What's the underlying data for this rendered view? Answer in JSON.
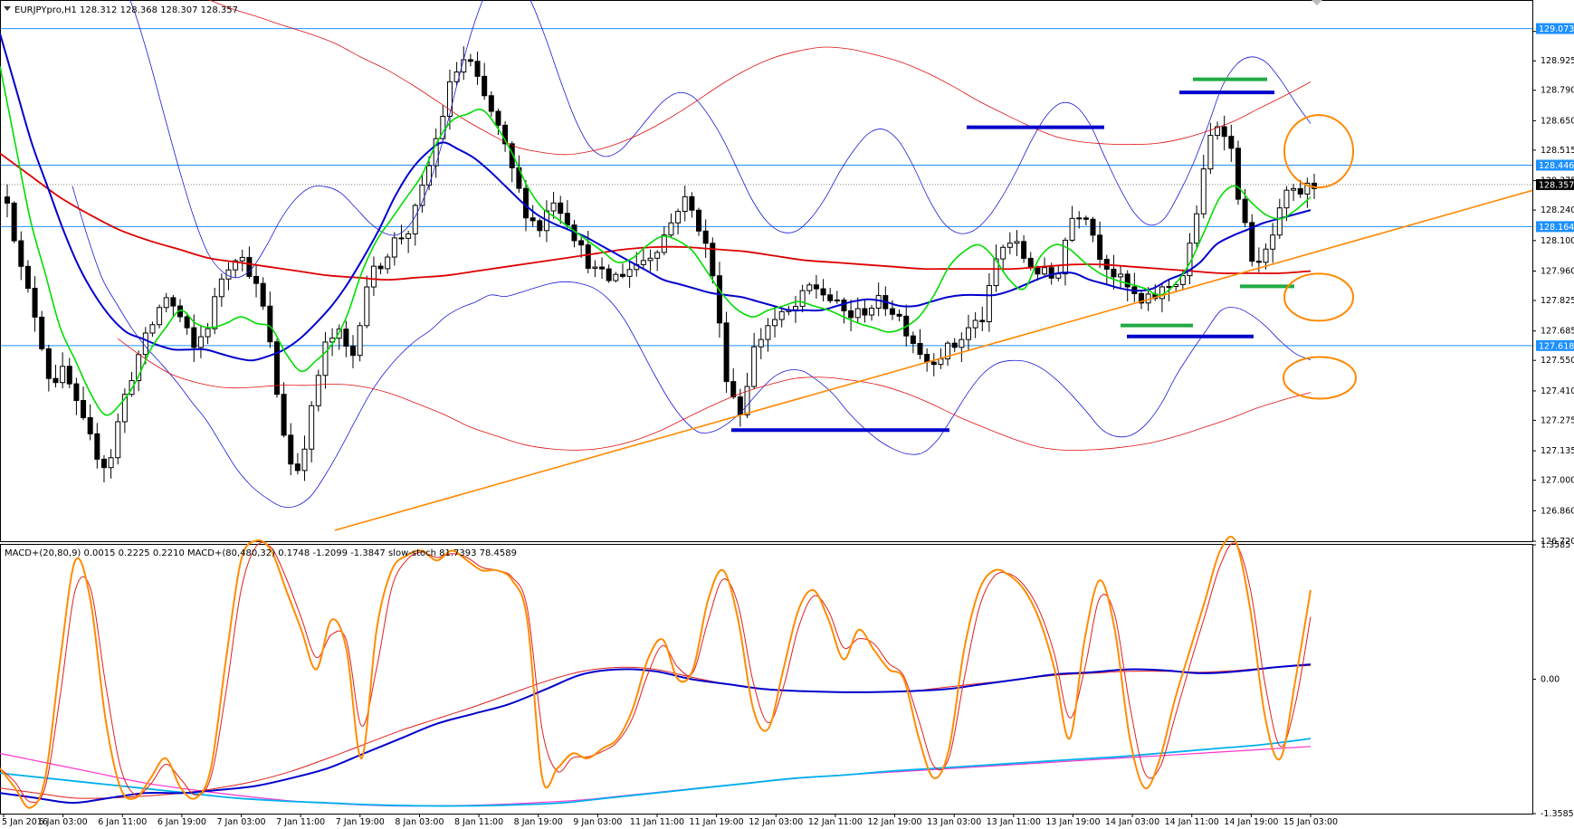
{
  "header": {
    "main_label": "EURJPYpro,H1  128.312 128.368 128.307 128.357",
    "indicator_label": "MACD+(20,80,9) 0.0015 0.2225 0.2210  MACD+(80,480,32) 0.1748 -1.2099 -1.3847  slow-stoch 81.7393 78.4589"
  },
  "colors": {
    "frame": "#000000",
    "ema_green": "#00dd00",
    "ema_blue": "#0000cc",
    "ema_red": "#dd0000",
    "band_blue": "#1a1ad8",
    "band_red": "#e01010",
    "trendline": "#ff8800",
    "hline": "#1e90ff",
    "stoch_orange": "#ff8c00",
    "stoch_red": "#e02020",
    "macd_cyan": "#00b0f0",
    "macd_pink": "#ff33cc",
    "tag_blue": "#1e90ff",
    "tag_black": "#000000"
  },
  "chart_data": [
    {
      "type": "candlestick",
      "symbol": "EURJPYpro",
      "timeframe": "H1",
      "ohlc_last": {
        "open": 128.312,
        "high": 128.368,
        "low": 128.307,
        "close": 128.357
      },
      "ylim": [
        126.72,
        129.2
      ],
      "y_ticks": [
        "129.060",
        "128.925",
        "128.790",
        "128.650",
        "128.515",
        "128.375",
        "128.240",
        "128.100",
        "127.960",
        "127.825",
        "127.685",
        "127.550",
        "127.410",
        "127.275",
        "127.135",
        "127.000",
        "126.860",
        "126.720"
      ],
      "x_tick_labels": [
        "5 Jan 2016",
        "6 Jan 03:00",
        "6 Jan 11:00",
        "6 Jan 19:00",
        "7 Jan 03:00",
        "7 Jan 11:00",
        "7 Jan 19:00",
        "8 Jan 03:00",
        "8 Jan 11:00",
        "8 Jan 19:00",
        "9 Jan 03:00",
        "11 Jan 11:00",
        "11 Jan 19:00",
        "12 Jan 03:00",
        "12 Jan 11:00",
        "12 Jan 19:00",
        "13 Jan 03:00",
        "13 Jan 11:00",
        "13 Jan 19:00",
        "14 Jan 03:00",
        "14 Jan 11:00",
        "14 Jan 19:00",
        "15 Jan 03:00"
      ],
      "horizontal_levels": [
        {
          "value": 129.073,
          "label": "129.073"
        },
        {
          "value": 128.446,
          "label": "128.446"
        },
        {
          "value": 128.164,
          "label": "128.164"
        },
        {
          "value": 127.618,
          "label": "127.618"
        }
      ],
      "current_price": {
        "value": 128.357,
        "label": "128.357"
      },
      "price_path": [
        128.3,
        127.95,
        127.75,
        127.45,
        127.5,
        127.3,
        127.15,
        127.05,
        127.35,
        127.55,
        127.7,
        127.85,
        127.75,
        127.6,
        127.72,
        127.95,
        128.05,
        127.95,
        127.75,
        127.3,
        127.0,
        127.25,
        127.6,
        127.68,
        127.55,
        127.9,
        128.0,
        128.1,
        128.15,
        128.35,
        128.6,
        128.85,
        128.95,
        128.78,
        128.65,
        128.45,
        128.25,
        128.15,
        128.3,
        128.2,
        128.05,
        127.95,
        127.92,
        127.96,
        128.0,
        128.05,
        128.15,
        128.3,
        128.2,
        128.0,
        127.5,
        127.3,
        127.6,
        127.72,
        127.75,
        127.8,
        127.9,
        127.85,
        127.78,
        127.75,
        127.8,
        127.82,
        127.76,
        127.65,
        127.55,
        127.58,
        127.62,
        127.7,
        127.75,
        128.05,
        128.1,
        128.0,
        127.95,
        127.92,
        128.2,
        128.25,
        128.05,
        127.95,
        127.88,
        127.8,
        127.85,
        127.9,
        127.95,
        128.3,
        128.65,
        128.6,
        128.2,
        127.95,
        128.1,
        128.3,
        128.32,
        128.357
      ],
      "green_ma": [
        128.9,
        128.55,
        128.2,
        127.95,
        127.7,
        127.55,
        127.4,
        127.3,
        127.35,
        127.45,
        127.6,
        127.7,
        127.78,
        127.72,
        127.7,
        127.72,
        127.75,
        127.72,
        127.7,
        127.58,
        127.5,
        127.55,
        127.62,
        127.75,
        127.95,
        128.1,
        128.2,
        128.3,
        128.4,
        128.55,
        128.65,
        128.68,
        128.7,
        128.62,
        128.5,
        128.35,
        128.25,
        128.2,
        128.15,
        128.1,
        128.05,
        128.0,
        128.02,
        128.08,
        128.12,
        128.1,
        128.05,
        127.95,
        127.85,
        127.78,
        127.75,
        127.78,
        127.8,
        127.82,
        127.8,
        127.78,
        127.75,
        127.72,
        127.7,
        127.68,
        127.7,
        127.75,
        127.85,
        127.98,
        128.05,
        128.08,
        128.02,
        127.92,
        127.88,
        128.02,
        128.08,
        128.06,
        128.0,
        127.95,
        127.92,
        127.9,
        127.88,
        127.85,
        127.9,
        128.0,
        128.15,
        128.3,
        128.35,
        128.28,
        128.22,
        128.2,
        128.24,
        128.3
      ],
      "blue_ma": [
        129.05,
        128.8,
        128.55,
        128.35,
        128.15,
        127.98,
        127.85,
        127.75,
        127.68,
        127.65,
        127.62,
        127.6,
        127.6,
        127.6,
        127.58,
        127.56,
        127.55,
        127.57,
        127.6,
        127.65,
        127.72,
        127.8,
        127.9,
        128.02,
        128.15,
        128.3,
        128.42,
        128.5,
        128.55,
        128.52,
        128.48,
        128.42,
        128.35,
        128.28,
        128.22,
        128.18,
        128.15,
        128.12,
        128.08,
        128.04,
        128.0,
        127.96,
        127.92,
        127.9,
        127.88,
        127.86,
        127.85,
        127.84,
        127.82,
        127.8,
        127.78,
        127.78,
        127.78,
        127.8,
        127.82,
        127.83,
        127.82,
        127.8,
        127.8,
        127.82,
        127.84,
        127.85,
        127.85,
        127.85,
        127.87,
        127.9,
        127.93,
        127.95,
        127.95,
        127.92,
        127.9,
        127.88,
        127.87,
        127.88,
        127.92,
        127.95,
        128.0,
        128.08,
        128.12,
        128.15,
        128.18,
        128.2,
        128.22,
        128.24
      ],
      "red_ma": [
        128.5,
        128.4,
        128.3,
        128.22,
        128.15,
        128.1,
        128.06,
        128.02,
        128.0,
        127.98,
        127.96,
        127.94,
        127.93,
        127.92,
        127.93,
        127.94,
        127.96,
        127.98,
        128.0,
        128.02,
        128.04,
        128.06,
        128.07,
        128.07,
        128.06,
        128.05,
        128.03,
        128.01,
        128.0,
        127.99,
        127.98,
        127.97,
        127.97,
        127.97,
        127.97,
        127.98,
        127.99,
        127.99,
        127.98,
        127.97,
        127.96,
        127.95,
        127.95,
        127.95,
        127.96
      ]
    },
    {
      "type": "line",
      "name": "indicator",
      "ylim": [
        -1.3585,
        1.3585
      ],
      "y_ticks": [
        "1.3585",
        "0.00",
        "-1.3585"
      ],
      "stoch": [
        -0.9,
        -1.1,
        -1.3,
        -1.0,
        0.2,
        1.2,
        0.8,
        -0.4,
        -1.1,
        -1.2,
        -1.0,
        -0.8,
        -1.1,
        -1.2,
        -0.9,
        0.2,
        1.2,
        1.4,
        1.3,
        0.9,
        0.5,
        0.1,
        0.6,
        0.3,
        -0.8,
        0.5,
        1.1,
        1.25,
        1.3,
        1.2,
        1.3,
        1.2,
        1.1,
        1.1,
        1.0,
        0.6,
        -1.0,
        -0.9,
        -0.75,
        -0.8,
        -0.7,
        -0.6,
        -0.3,
        0.2,
        0.4,
        0.0,
        0.1,
        0.8,
        1.1,
        0.6,
        -0.3,
        -0.5,
        0.1,
        0.7,
        0.9,
        0.6,
        0.2,
        0.5,
        0.3,
        0.1,
        0.0,
        -0.6,
        -1.0,
        -0.7,
        0.3,
        0.9,
        1.1,
        1.05,
        0.9,
        0.6,
        0.1,
        -0.6,
        0.4,
        1.0,
        0.5,
        -0.6,
        -1.1,
        -0.8,
        -0.2,
        0.3,
        0.8,
        1.3,
        1.4,
        0.7,
        -0.4,
        -0.8,
        0.0,
        0.9
      ],
      "macd_fast": [
        -1.15,
        -1.2,
        -1.25,
        -1.2,
        -1.15,
        -1.15,
        -1.12,
        -1.08,
        -1.0,
        -0.9,
        -0.75,
        -0.6,
        -0.45,
        -0.35,
        -0.25,
        -0.1,
        0.05,
        0.1,
        0.08,
        0.0,
        -0.05,
        -0.1,
        -0.12,
        -0.13,
        -0.13,
        -0.12,
        -0.1,
        -0.05,
        0.0,
        0.05,
        0.07,
        0.1,
        0.09,
        0.06,
        0.08,
        0.12,
        0.15
      ],
      "macd_signal": [
        -1.1,
        -1.15,
        -1.2,
        -1.2,
        -1.18,
        -1.15,
        -1.1,
        -1.03,
        -0.93,
        -0.8,
        -0.66,
        -0.52,
        -0.4,
        -0.28,
        -0.15,
        -0.02,
        0.08,
        0.12,
        0.1,
        0.02,
        -0.05,
        -0.1,
        -0.12,
        -0.13,
        -0.13,
        -0.12,
        -0.08,
        -0.04,
        0.0,
        0.04,
        0.06,
        0.08,
        0.08,
        0.07,
        0.09,
        0.12,
        0.14
      ],
      "slow_cyan": [
        -0.95,
        -1.0,
        -1.05,
        -1.1,
        -1.15,
        -1.2,
        -1.23,
        -1.25,
        -1.27,
        -1.28,
        -1.28,
        -1.27,
        -1.25,
        -1.2,
        -1.15,
        -1.1,
        -1.05,
        -1.0,
        -0.97,
        -0.93,
        -0.9,
        -0.87,
        -0.84,
        -0.81,
        -0.78,
        -0.74,
        -0.7,
        -0.66,
        -0.6
      ],
      "slow_pink": [
        -0.75,
        -0.85,
        -0.95,
        -1.05,
        -1.12,
        -1.18,
        -1.23,
        -1.26,
        -1.28,
        -1.28,
        -1.27,
        -1.25,
        -1.22,
        -1.17,
        -1.12,
        -1.07,
        -1.02,
        -0.98,
        -0.95,
        -0.92,
        -0.89,
        -0.86,
        -0.83,
        -0.8,
        -0.77,
        -0.74,
        -0.71,
        -0.68
      ]
    }
  ]
}
